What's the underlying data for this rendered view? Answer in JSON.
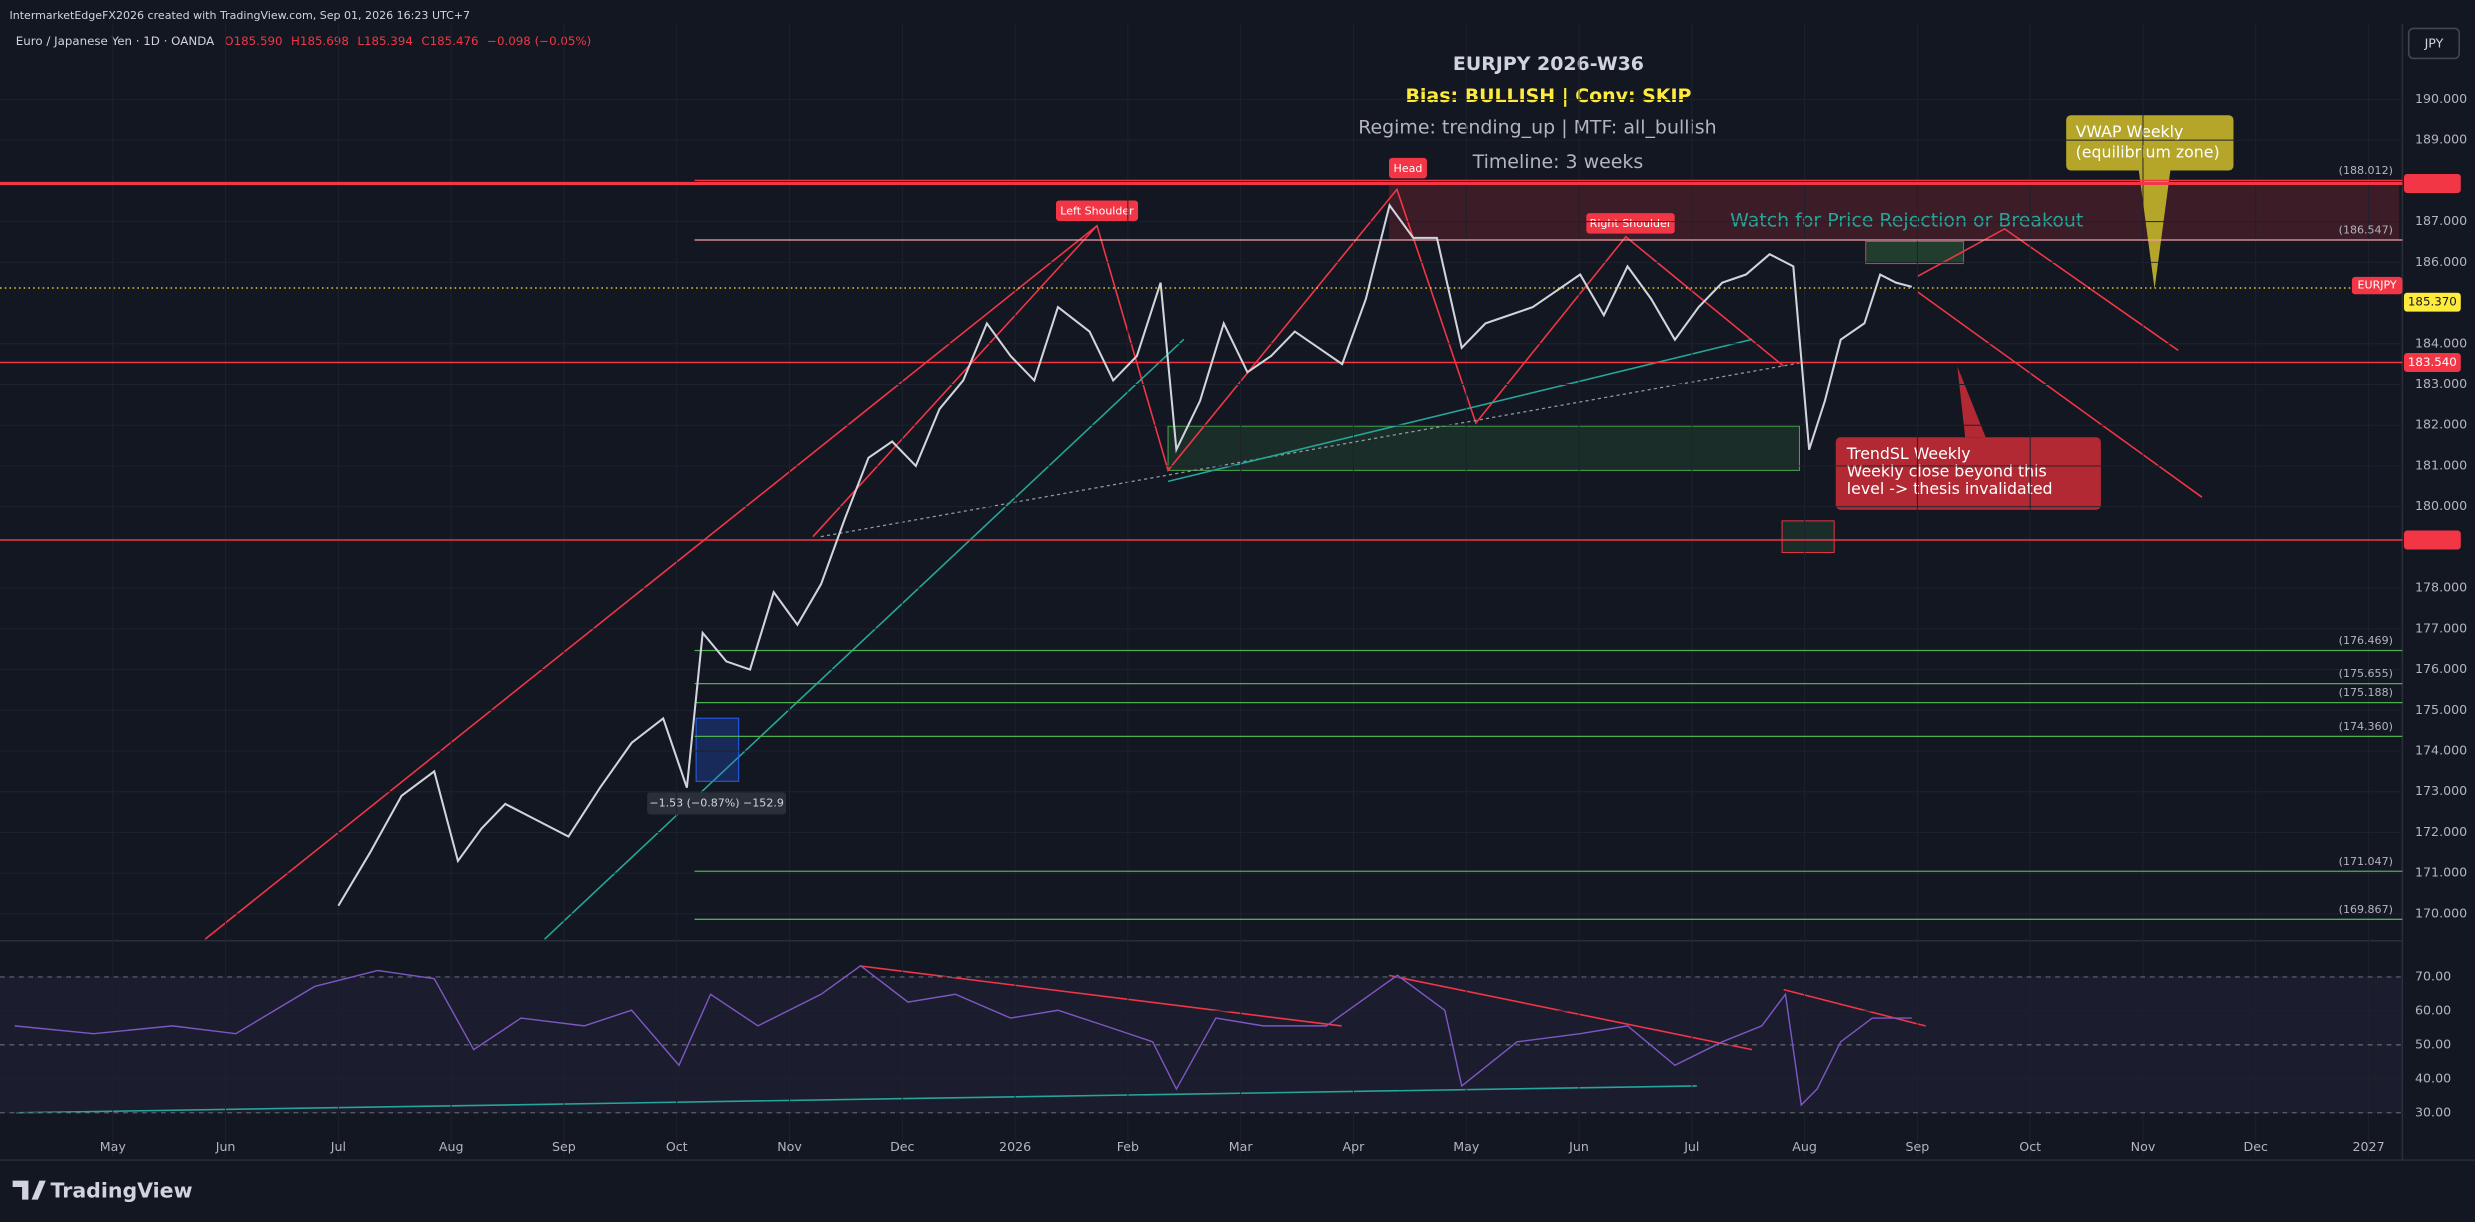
{
  "header": {
    "credit": "IntermarketEdgeFX2026 created with TradingView.com, Sep 01, 2026 16:23 UTC+7",
    "symbol": "Euro / Japanese Yen · 1D · OANDA",
    "open": "O185.590",
    "high": "H185.698",
    "low": "L185.394",
    "close": "C185.476",
    "change": "−0.098 (−0.05%)"
  },
  "currency_button": "JPY",
  "logo": "TradingView",
  "annotations": {
    "title": "EURJPY 2026-W36",
    "bias": "Bias: BULLISH | Conv: SKIP",
    "regime": "Regime: trending_up | MTF: all_bullish",
    "timeline": "Timeline: 3 weeks",
    "head": "Head",
    "left_shoulder": "Left Shoulder",
    "right_shoulder": "Right Shoulder",
    "watch": "Watch for Price Rejection or Breakout",
    "vwap_1": "VWAP Weekly",
    "vwap_2": "(equilibrium zone)",
    "sl_1": "TrendSL Weekly",
    "sl_2": "Weekly close beyond this",
    "sl_3": "level -> thesis invalidated",
    "measure": "−1.53 (−0.87%) −152.9"
  },
  "chart_data": [
    {
      "type": "line",
      "color": "#d1d4dc",
      "x": [
        2.0,
        2.28,
        2.56,
        2.85,
        3.06,
        3.27,
        3.48,
        3.76,
        4.04,
        4.32,
        4.6,
        4.88,
        5.09,
        5.23,
        5.44,
        5.65,
        5.86,
        6.07,
        6.28,
        6.49,
        6.7,
        6.91,
        7.12,
        7.33,
        7.54,
        7.75,
        7.96,
        8.17,
        8.38,
        8.66,
        8.87,
        9.08,
        9.29,
        9.43,
        9.64,
        9.85,
        10.06,
        10.27,
        10.48,
        10.69,
        10.9,
        11.11,
        11.32,
        11.53,
        11.74,
        11.96,
        12.17,
        12.38,
        12.59,
        12.8,
        13.01,
        13.22,
        13.43,
        13.64,
        13.85,
        14.06,
        14.27,
        14.48,
        14.69,
        14.9,
        15.04,
        15.18,
        15.32,
        15.53,
        15.67,
        15.81,
        15.95
      ],
      "values": [
        170.2,
        171.5,
        172.9,
        173.5,
        171.3,
        172.1,
        172.7,
        172.3,
        171.9,
        173.1,
        174.2,
        174.8,
        173.1,
        176.9,
        176.2,
        176.0,
        177.9,
        177.1,
        178.1,
        179.7,
        181.2,
        181.6,
        181.0,
        182.4,
        183.1,
        184.5,
        183.7,
        183.1,
        184.9,
        184.3,
        183.1,
        183.7,
        185.5,
        181.4,
        182.6,
        184.5,
        183.3,
        183.7,
        184.3,
        183.9,
        183.5,
        185.1,
        187.4,
        186.6,
        186.6,
        183.9,
        184.5,
        184.7,
        184.9,
        185.3,
        185.7,
        184.7,
        185.9,
        185.1,
        184.1,
        184.9,
        185.5,
        185.7,
        186.2,
        185.9,
        181.4,
        182.6,
        184.1,
        184.5,
        185.7,
        185.5,
        185.4
      ],
      "xlim": [
        -1.0,
        20.3
      ],
      "ylim": [
        169.38,
        191.86
      ],
      "xticks": [
        {
          "value": 0,
          "label": "May"
        },
        {
          "value": 1,
          "label": "Jun"
        },
        {
          "value": 2,
          "label": "Jul"
        },
        {
          "value": 3,
          "label": "Aug"
        },
        {
          "value": 4,
          "label": "Sep"
        },
        {
          "value": 5,
          "label": "Oct"
        },
        {
          "value": 6,
          "label": "Nov"
        },
        {
          "value": 7,
          "label": "Dec"
        },
        {
          "value": 8,
          "label": "2026"
        },
        {
          "value": 9,
          "label": "Feb"
        },
        {
          "value": 10,
          "label": "Mar"
        },
        {
          "value": 11,
          "label": "Apr"
        },
        {
          "value": 12,
          "label": "May"
        },
        {
          "value": 13,
          "label": "Jun"
        },
        {
          "value": 14,
          "label": "Jul"
        },
        {
          "value": 15,
          "label": "Aug"
        },
        {
          "value": 16,
          "label": "Sep"
        },
        {
          "value": 17,
          "label": "Oct"
        },
        {
          "value": 18,
          "label": "Nov"
        },
        {
          "value": 19,
          "label": "Dec"
        },
        {
          "value": 20,
          "label": "2027"
        }
      ],
      "yticks": [
        {
          "value": 170,
          "label": "170.000"
        },
        {
          "value": 171,
          "label": "171.000"
        },
        {
          "value": 172,
          "label": "172.000"
        },
        {
          "value": 173,
          "label": "173.000"
        },
        {
          "value": 174,
          "label": "174.000"
        },
        {
          "value": 175,
          "label": "175.000"
        },
        {
          "value": 176,
          "label": "176.000"
        },
        {
          "value": 177,
          "label": "177.000"
        },
        {
          "value": 178,
          "label": "178.000"
        },
        {
          "value": 180,
          "label": "180.000"
        },
        {
          "value": 181,
          "label": "181.000"
        },
        {
          "value": 182,
          "label": "182.000"
        },
        {
          "value": 183,
          "label": "183.000"
        },
        {
          "value": 184,
          "label": "184.000"
        },
        {
          "value": 186,
          "label": "186.000"
        },
        {
          "value": 187,
          "label": "187.000"
        },
        {
          "value": 189,
          "label": "189.000"
        },
        {
          "value": 190,
          "label": "190.000"
        }
      ],
      "levels": [
        {
          "value": 187.936,
          "color": "#f23645"
        },
        {
          "value": 183.54,
          "label": "183.540",
          "color": "#f23645"
        },
        {
          "value": 179.181,
          "color": "#f23645"
        }
      ],
      "marked_levels": [
        {
          "value": 188.012,
          "label": "(188.012)",
          "color": "#f23645"
        },
        {
          "value": 186.547,
          "label": "(186.547)",
          "color": "#f7a1a8"
        },
        {
          "value": 176.469,
          "label": "(176.469)",
          "color": "#4caf50"
        },
        {
          "value": 175.655,
          "label": "(175.655)",
          "color": "#4caf50"
        },
        {
          "value": 175.188,
          "label": "(175.188)",
          "color": "#4caf50"
        },
        {
          "value": 174.36,
          "label": "(174.360)",
          "color": "#4caf50"
        },
        {
          "value": 171.047,
          "label": "(171.047)",
          "color": "#4caf50"
        },
        {
          "value": 169.867,
          "label": "(169.867)",
          "color": "#4caf50"
        }
      ],
      "last_name": "EURJPY",
      "last_value": {
        "value": 185.37,
        "label": "185.370"
      }
    },
    {
      "type": "line",
      "color": "#7e57c2",
      "x": [
        -0.87,
        -0.17,
        0.53,
        1.09,
        1.79,
        2.35,
        2.85,
        3.2,
        3.62,
        4.18,
        4.6,
        5.02,
        5.3,
        5.72,
        6.28,
        6.63,
        7.05,
        7.47,
        7.96,
        8.38,
        8.8,
        9.22,
        9.43,
        9.78,
        10.2,
        10.76,
        11.25,
        11.39,
        11.81,
        11.96,
        12.45,
        13.01,
        13.43,
        13.85,
        14.27,
        14.62,
        14.83,
        14.97,
        15.11,
        15.32,
        15.6,
        15.95
      ],
      "values": [
        55.6,
        53.3,
        55.6,
        53.3,
        67.2,
        71.9,
        69.5,
        48.6,
        57.9,
        55.6,
        60.2,
        44.0,
        64.9,
        55.6,
        64.9,
        73.3,
        62.6,
        64.9,
        57.9,
        60.2,
        55.6,
        50.9,
        37.0,
        57.9,
        55.6,
        55.6,
        67.2,
        70.5,
        60.2,
        37.9,
        50.9,
        53.3,
        55.6,
        44.0,
        50.9,
        55.6,
        64.9,
        32.3,
        37.0,
        50.9,
        57.9,
        57.9
      ],
      "xlim": [
        -1.0,
        20.3
      ],
      "ylim": [
        17,
        80.2
      ],
      "yticks": [
        {
          "value": 30,
          "label": "30.00"
        },
        {
          "value": 40,
          "label": "40.00"
        },
        {
          "value": 50,
          "label": "50.00"
        },
        {
          "value": 60,
          "label": "60.00"
        },
        {
          "value": 70,
          "label": "70.00"
        }
      ]
    }
  ]
}
